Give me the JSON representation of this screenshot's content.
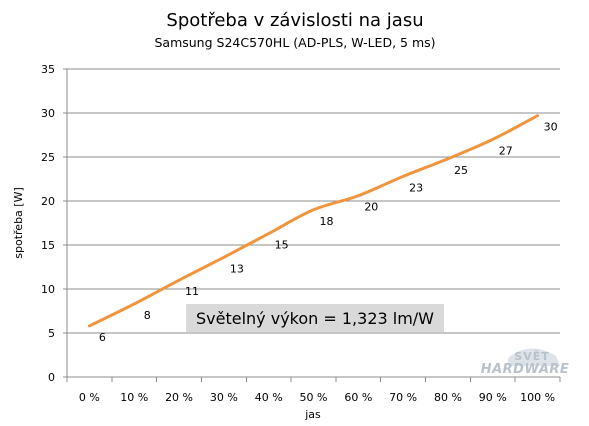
{
  "chart_data": {
    "type": "line",
    "title": "Spotřeba v závislosti na jasu",
    "subtitle": "Samsung S24C570HL   (AD-PLS, W-LED, 5 ms)",
    "xlabel": "jas",
    "ylabel": "spotřeba [W]",
    "categories": [
      "0 %",
      "10 %",
      "20 %",
      "30 %",
      "40 %",
      "50 %",
      "60 %",
      "70 %",
      "80 %",
      "90 %",
      "100 %"
    ],
    "values": [
      6,
      8,
      11,
      13,
      15,
      18,
      20,
      23,
      25,
      27,
      30
    ],
    "line_values": [
      5.8,
      8.3,
      11.0,
      13.6,
      16.3,
      19.0,
      20.6,
      22.8,
      24.8,
      27.0,
      29.7
    ],
    "ylim": [
      0,
      35
    ],
    "yticks": [
      0,
      5,
      10,
      15,
      20,
      25,
      30,
      35
    ],
    "grid": true,
    "series_color": "#f0953d",
    "annotation": "Světelný výkon = 1,323 lm/W",
    "annotation_bg": "#d9d9d9"
  },
  "watermark": {
    "top": "SVĚT",
    "bottom": "HARDWARE"
  }
}
